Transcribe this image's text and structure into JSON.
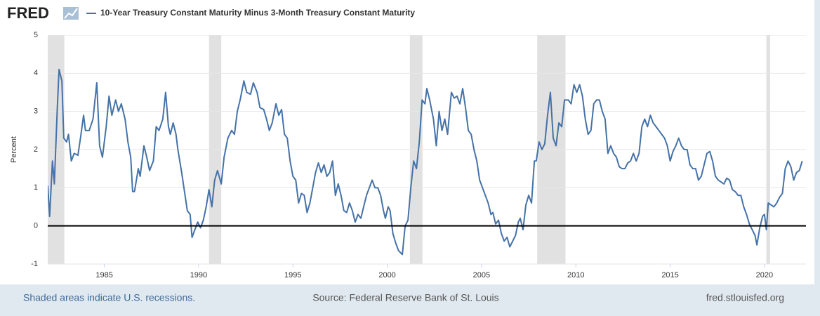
{
  "chart_data": {
    "type": "line",
    "logo": "FRED",
    "ylabel": "Percent",
    "notes": "Shaded areas indicate U.S. recessions.",
    "source": "Source: Federal Reserve Bank of St. Louis",
    "url": "fred.stlouisfed.org",
    "xlim": [
      1982.0,
      2022.2
    ],
    "ylim": [
      -1,
      5
    ],
    "xticks": [
      1985,
      1990,
      1995,
      2000,
      2005,
      2010,
      2015,
      2020
    ],
    "yticks": [
      -1,
      0,
      1,
      2,
      3,
      4,
      5
    ],
    "grid": true,
    "zero_line": true,
    "recessions": [
      [
        1981.55,
        1982.88
      ],
      [
        1990.55,
        1991.2
      ],
      [
        2001.2,
        2001.87
      ],
      [
        2007.95,
        2009.45
      ],
      [
        2020.1,
        2020.3
      ]
    ],
    "x": [
      1982.0,
      1982.1,
      1982.25,
      1982.35,
      1982.5,
      1982.6,
      1982.75,
      1982.85,
      1983.0,
      1983.1,
      1983.25,
      1983.4,
      1983.6,
      1983.75,
      1983.9,
      1984.0,
      1984.2,
      1984.4,
      1984.6,
      1984.75,
      1984.9,
      1985.1,
      1985.25,
      1985.4,
      1985.6,
      1985.75,
      1985.9,
      1986.1,
      1986.25,
      1986.4,
      1986.5,
      1986.6,
      1986.8,
      1986.9,
      1987.1,
      1987.25,
      1987.4,
      1987.6,
      1987.75,
      1987.9,
      1988.1,
      1988.25,
      1988.4,
      1988.5,
      1988.65,
      1988.8,
      1988.9,
      1989.1,
      1989.25,
      1989.4,
      1989.55,
      1989.65,
      1989.8,
      1989.95,
      1990.1,
      1990.25,
      1990.4,
      1990.55,
      1990.7,
      1990.85,
      1991.0,
      1991.2,
      1991.35,
      1991.55,
      1991.75,
      1991.9,
      1992.05,
      1992.2,
      1992.4,
      1992.55,
      1992.75,
      1992.9,
      1993.1,
      1993.25,
      1993.45,
      1993.6,
      1993.75,
      1993.9,
      1994.1,
      1994.25,
      1994.4,
      1994.55,
      1994.7,
      1994.85,
      1995.0,
      1995.15,
      1995.3,
      1995.45,
      1995.6,
      1995.75,
      1995.9,
      1996.05,
      1996.2,
      1996.35,
      1996.5,
      1996.65,
      1996.8,
      1996.95,
      1997.1,
      1997.25,
      1997.4,
      1997.55,
      1997.7,
      1997.85,
      1998.0,
      1998.15,
      1998.3,
      1998.45,
      1998.6,
      1998.75,
      1998.9,
      1999.05,
      1999.2,
      1999.35,
      1999.5,
      1999.65,
      1999.8,
      1999.9,
      2000.05,
      2000.15,
      2000.3,
      2000.45,
      2000.6,
      2000.8,
      2000.95,
      2001.1,
      2001.25,
      2001.4,
      2001.55,
      2001.7,
      2001.85,
      2002.0,
      2002.1,
      2002.25,
      2002.45,
      2002.6,
      2002.75,
      2002.9,
      2003.05,
      2003.2,
      2003.4,
      2003.55,
      2003.7,
      2003.85,
      2004.0,
      2004.15,
      2004.3,
      2004.45,
      2004.6,
      2004.75,
      2004.9,
      2005.05,
      2005.2,
      2005.35,
      2005.5,
      2005.6,
      2005.75,
      2005.9,
      2006.05,
      2006.2,
      2006.35,
      2006.5,
      2006.65,
      2006.8,
      2006.95,
      2007.05,
      2007.2,
      2007.35,
      2007.5,
      2007.65,
      2007.8,
      2007.9,
      2008.05,
      2008.2,
      2008.35,
      2008.5,
      2008.65,
      2008.8,
      2008.95,
      2009.1,
      2009.25,
      2009.4,
      2009.6,
      2009.75,
      2009.9,
      2010.05,
      2010.2,
      2010.35,
      2010.5,
      2010.65,
      2010.8,
      2010.95,
      2011.1,
      2011.25,
      2011.4,
      2011.55,
      2011.7,
      2011.85,
      2012.0,
      2012.15,
      2012.3,
      2012.45,
      2012.6,
      2012.75,
      2012.9,
      2013.05,
      2013.2,
      2013.35,
      2013.5,
      2013.65,
      2013.8,
      2013.95,
      2014.1,
      2014.25,
      2014.4,
      2014.55,
      2014.7,
      2014.85,
      2015.0,
      2015.15,
      2015.3,
      2015.45,
      2015.6,
      2015.75,
      2015.9,
      2016.05,
      2016.2,
      2016.35,
      2016.5,
      2016.65,
      2016.8,
      2016.95,
      2017.1,
      2017.25,
      2017.4,
      2017.55,
      2017.7,
      2017.85,
      2018.0,
      2018.15,
      2018.3,
      2018.45,
      2018.6,
      2018.75,
      2018.9,
      2019.05,
      2019.2,
      2019.35,
      2019.5,
      2019.6,
      2019.75,
      2019.9,
      2020.0,
      2020.1,
      2020.2,
      2020.35,
      2020.5,
      2020.65,
      2020.8,
      2020.95,
      2021.1,
      2021.25,
      2021.4,
      2021.55,
      2021.7,
      2021.85,
      2022.0
    ],
    "series": [
      {
        "name": "10-Year Treasury Constant Maturity Minus 3-Month Treasury Constant Maturity",
        "color": "#4572a7",
        "values": [
          1.05,
          0.25,
          1.7,
          1.1,
          3.0,
          4.1,
          3.8,
          2.3,
          2.2,
          2.4,
          1.7,
          1.9,
          1.85,
          2.35,
          2.9,
          2.5,
          2.5,
          2.8,
          3.75,
          2.1,
          1.8,
          2.6,
          3.4,
          2.9,
          3.3,
          3.0,
          3.2,
          2.8,
          2.2,
          1.8,
          0.9,
          0.9,
          1.5,
          1.3,
          2.1,
          1.8,
          1.45,
          1.7,
          2.6,
          2.5,
          2.8,
          3.5,
          2.6,
          2.4,
          2.7,
          2.4,
          2.0,
          1.4,
          0.9,
          0.4,
          0.3,
          -0.3,
          -0.1,
          0.1,
          -0.05,
          0.15,
          0.5,
          0.95,
          0.5,
          1.2,
          1.45,
          1.1,
          1.8,
          2.3,
          2.5,
          2.4,
          3.0,
          3.3,
          3.8,
          3.5,
          3.45,
          3.75,
          3.5,
          3.1,
          3.05,
          2.8,
          2.5,
          2.7,
          3.2,
          2.9,
          3.05,
          2.4,
          2.3,
          1.7,
          1.3,
          1.2,
          0.6,
          0.85,
          0.8,
          0.35,
          0.6,
          1.0,
          1.4,
          1.65,
          1.4,
          1.6,
          1.3,
          1.4,
          1.7,
          0.8,
          1.1,
          0.8,
          0.4,
          0.35,
          0.6,
          0.4,
          0.1,
          0.3,
          0.2,
          0.5,
          0.8,
          1.0,
          1.2,
          1.0,
          1.0,
          0.8,
          0.4,
          0.2,
          0.5,
          0.4,
          -0.2,
          -0.45,
          -0.65,
          -0.75,
          0.0,
          0.15,
          1.0,
          1.7,
          1.5,
          2.2,
          3.3,
          3.2,
          3.6,
          3.3,
          2.8,
          2.1,
          3.0,
          2.5,
          2.8,
          2.4,
          3.5,
          3.35,
          3.4,
          3.2,
          3.6,
          3.1,
          2.5,
          2.4,
          2.0,
          1.7,
          1.2,
          1.0,
          0.8,
          0.6,
          0.3,
          0.35,
          0.05,
          0.15,
          -0.2,
          -0.4,
          -0.3,
          -0.55,
          -0.4,
          -0.25,
          0.1,
          0.2,
          -0.1,
          0.55,
          0.8,
          0.6,
          1.7,
          1.7,
          2.2,
          2.0,
          2.15,
          2.9,
          3.5,
          2.3,
          2.1,
          2.7,
          2.6,
          3.3,
          3.3,
          3.2,
          3.7,
          3.5,
          3.7,
          3.4,
          2.8,
          2.4,
          2.5,
          3.2,
          3.3,
          3.3,
          3.0,
          2.8,
          1.9,
          2.1,
          1.9,
          1.8,
          1.55,
          1.5,
          1.5,
          1.65,
          1.7,
          1.9,
          1.7,
          1.9,
          2.6,
          2.8,
          2.6,
          2.9,
          2.7,
          2.6,
          2.5,
          2.4,
          2.3,
          2.1,
          1.7,
          1.95,
          2.1,
          2.3,
          2.1,
          2.0,
          2.0,
          1.6,
          1.5,
          1.5,
          1.2,
          1.3,
          1.6,
          1.9,
          1.95,
          1.7,
          1.3,
          1.2,
          1.15,
          1.1,
          1.25,
          1.2,
          0.95,
          0.9,
          0.8,
          0.8,
          0.5,
          0.3,
          0.05,
          -0.1,
          -0.25,
          -0.5,
          -0.05,
          0.25,
          0.3,
          -0.1,
          0.6,
          0.55,
          0.5,
          0.6,
          0.75,
          0.85,
          1.5,
          1.7,
          1.55,
          1.2,
          1.4,
          1.45,
          1.7
        ]
      }
    ]
  }
}
